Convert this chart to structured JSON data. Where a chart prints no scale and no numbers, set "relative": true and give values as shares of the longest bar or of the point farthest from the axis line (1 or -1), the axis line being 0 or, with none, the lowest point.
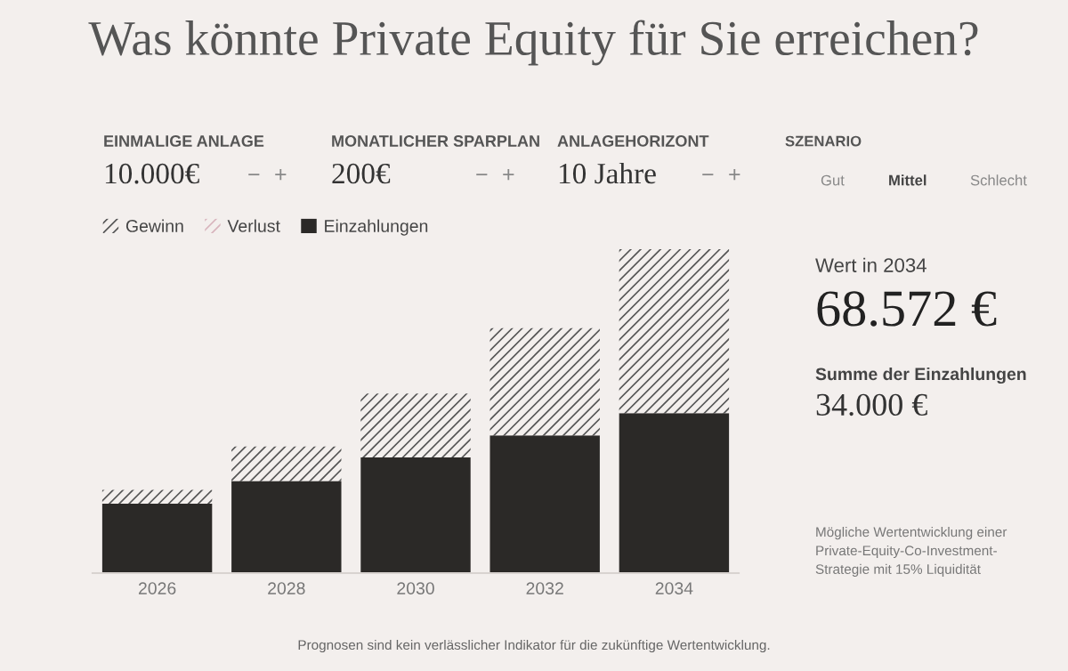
{
  "chart_data": {
    "type": "bar",
    "stacked": true,
    "relative": true,
    "title": "Was könnte Private Equity für Sie erreichen?",
    "categories": [
      "2026",
      "2028",
      "2030",
      "2032",
      "2034"
    ],
    "series": [
      {
        "name": "Einzahlungen",
        "color": "#2b2927",
        "values": [
          0.214,
          0.284,
          0.357,
          0.425,
          0.494
        ]
      },
      {
        "name": "Gewinn",
        "color": "#555555",
        "values": [
          0.043,
          0.107,
          0.197,
          0.331,
          0.506
        ]
      },
      {
        "name": "Verlust",
        "color": "#d8b4bd",
        "values": [
          null,
          null,
          null,
          null,
          null
        ]
      }
    ],
    "legend": "top left",
    "grid": false,
    "annotations": [
      "EINMALIGE ANLAGE",
      "10.000€",
      "−",
      "+",
      "MONATLICHER SPARPLAN",
      "200€",
      "−",
      "+",
      "ANLAGEHORIZONT",
      "10 Jahre",
      "−",
      "+",
      "SZENARIO",
      "Gut",
      "Mittel",
      "Schlecht",
      "Wert in 2034",
      "68.572 €",
      "Summe der Einzahlungen",
      "34.000 €",
      "Mögliche Wertentwicklung einer\nPrivate-Equity-Co-Investment-\nStrategie mit 15% Liquidität",
      "Prognosen sind kein verlässlicher Indikator für die zukünftige Wertentwicklung."
    ]
  }
}
